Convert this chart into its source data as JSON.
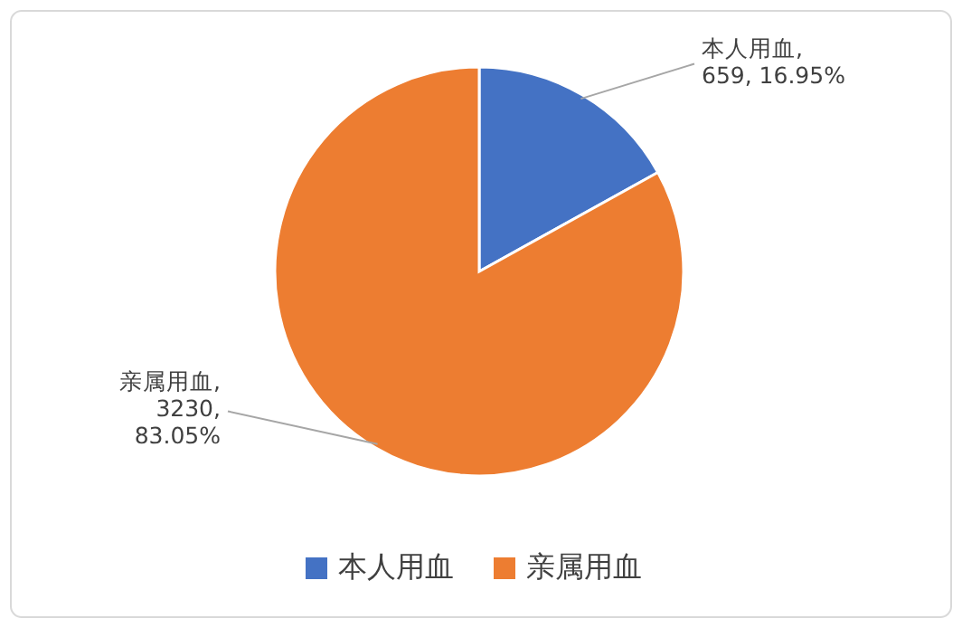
{
  "chart_data": {
    "type": "pie",
    "categories": [
      "本人用血",
      "亲属用血"
    ],
    "values": [
      659,
      3230
    ],
    "colors": [
      "#4472c4",
      "#ed7d31"
    ],
    "value_labels": [
      "本人用血,\n659, 16.95%",
      "亲属用血,\n3230,\n83.05%"
    ],
    "legend": "bottom"
  }
}
